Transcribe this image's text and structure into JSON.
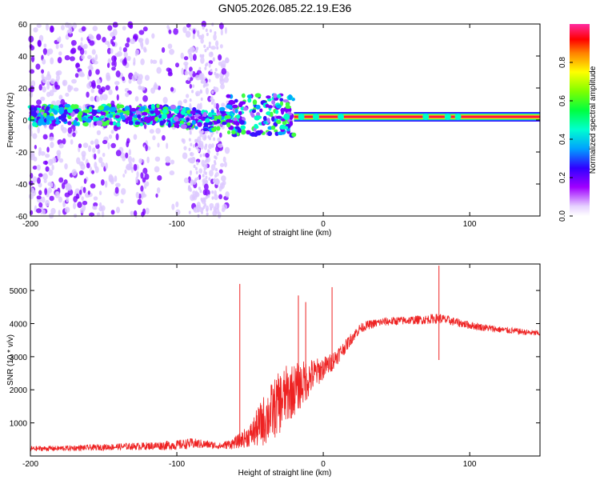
{
  "figure": {
    "title": "GN05.2026.085.22.19.E36"
  },
  "chart_data": [
    {
      "type": "heatmap",
      "name": "spectrogram",
      "xlabel": "Height of straight line (km)",
      "ylabel": "Frequency (Hz)",
      "xlim": [
        -200,
        148
      ],
      "ylim": [
        -60,
        60
      ],
      "xticks": [
        -200,
        -100,
        0,
        100
      ],
      "yticks": [
        60,
        40,
        20,
        0,
        -20,
        -40,
        -60
      ],
      "ytick_labels": [
        "60",
        "40",
        "20",
        "0",
        "-20",
        "-40",
        "-60"
      ],
      "colorbar": {
        "label": "Normalized spectral amplitude",
        "range": [
          0,
          1
        ],
        "ticks": [
          0.0,
          0.2,
          0.4,
          0.6,
          0.8
        ],
        "tick_labels": [
          "0.0",
          "0.2",
          "0.4",
          "0.6",
          "0.8"
        ]
      },
      "features": [
        {
          "description": "sparse purple scatter",
          "x_range": [
            -200,
            -65
          ],
          "freq_range": [
            -60,
            60
          ],
          "amplitude": 0.15
        },
        {
          "description": "speckled band",
          "x_range": [
            -200,
            -20
          ],
          "freq_center": 3,
          "freq_halfwidth": 6,
          "amplitude": 0.25
        },
        {
          "description": "persistent narrow line",
          "x_range": [
            -20,
            148
          ],
          "freq_center": 2,
          "freq_halfwidth": 2,
          "amplitude": 0.95
        }
      ]
    },
    {
      "type": "line",
      "name": "snr",
      "xlabel": "Height of straight line (km)",
      "ylabel": "SNR (10 * v/v)",
      "xlim": [
        -200,
        148
      ],
      "ylim": [
        0,
        5800
      ],
      "xticks": [
        -200,
        -100,
        0,
        100
      ],
      "yticks": [
        1000,
        2000,
        3000,
        4000,
        5000
      ],
      "color": "#ee2222",
      "series": [
        {
          "name": "SNR",
          "x": [
            -200,
            -180,
            -160,
            -140,
            -120,
            -100,
            -90,
            -80,
            -70,
            -60,
            -50,
            -45,
            -40,
            -35,
            -30,
            -25,
            -20,
            -15,
            -10,
            -5,
            0,
            5,
            10,
            15,
            20,
            25,
            30,
            40,
            50,
            60,
            70,
            75,
            80,
            85,
            90,
            100,
            110,
            120,
            130,
            140,
            148
          ],
          "y": [
            220,
            230,
            250,
            280,
            300,
            330,
            380,
            350,
            300,
            400,
            620,
            850,
            1100,
            1350,
            1600,
            1850,
            2000,
            2150,
            2350,
            2500,
            2650,
            2800,
            3050,
            3300,
            3600,
            3850,
            3950,
            4050,
            4080,
            4100,
            4120,
            4150,
            4150,
            4100,
            4050,
            3950,
            3880,
            3820,
            3780,
            3730,
            3700
          ],
          "noise": [
            80,
            80,
            90,
            100,
            120,
            150,
            160,
            130,
            100,
            180,
            350,
            600,
            800,
            900,
            950,
            900,
            800,
            700,
            600,
            450,
            350,
            300,
            260,
            200,
            180,
            150,
            140,
            130,
            130,
            130,
            140,
            150,
            150,
            140,
            130,
            120,
            110,
            100,
            100,
            90,
            90
          ]
        }
      ],
      "spikes": [
        {
          "x": -57,
          "y": 5200
        },
        {
          "x": -17,
          "y": 4850
        },
        {
          "x": -12,
          "y": 4650
        },
        {
          "x": 6,
          "y": 5100
        },
        {
          "x": 79,
          "y": 5750
        },
        {
          "x": 79,
          "y": 2900
        }
      ]
    }
  ]
}
